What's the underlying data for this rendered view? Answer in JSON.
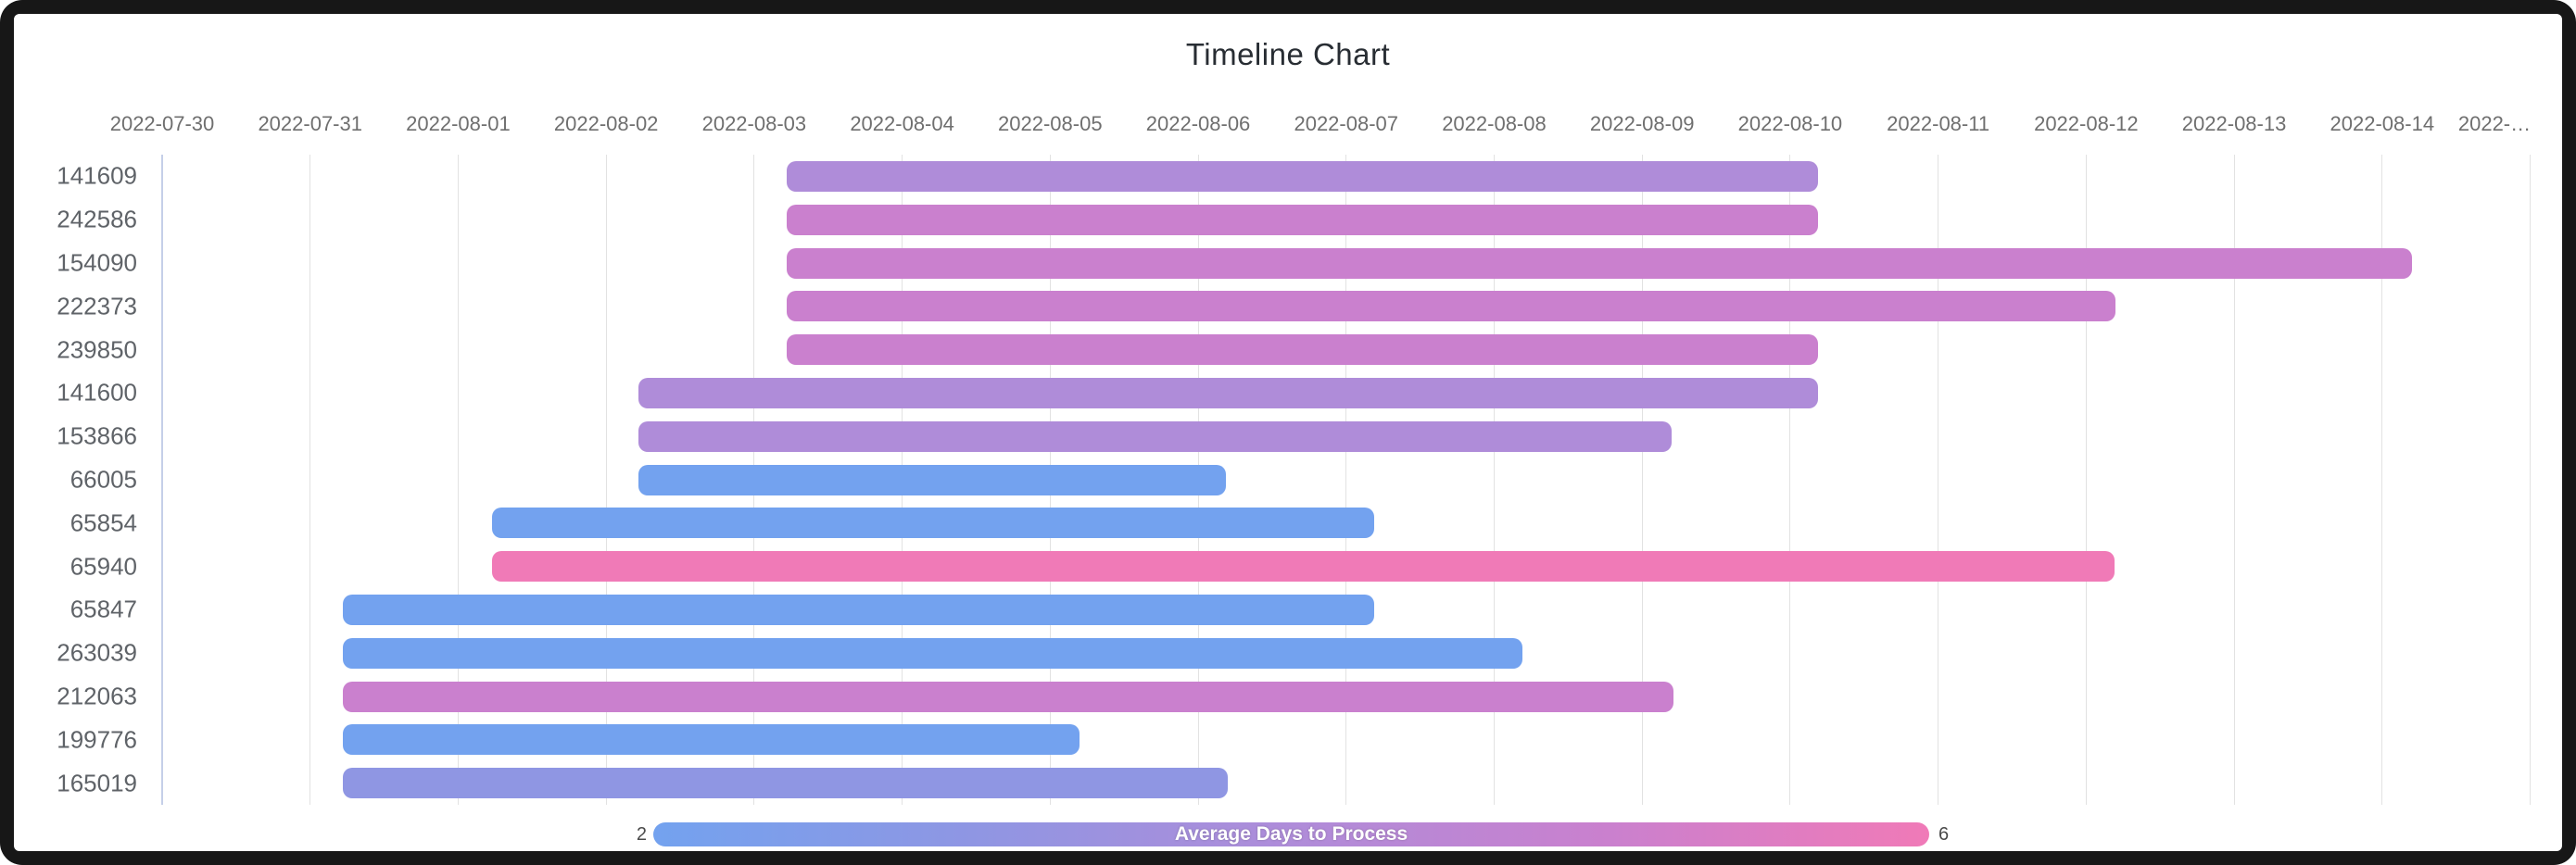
{
  "chart_data": {
    "type": "bar",
    "variant": "timeline-gantt",
    "title": "Timeline Chart",
    "x_axis": {
      "unit": "date",
      "axis_start": "2022-07-30",
      "days_per_gridline": 1,
      "tick_labels": [
        "2022-07-30",
        "2022-07-31",
        "2022-08-01",
        "2022-08-02",
        "2022-08-03",
        "2022-08-04",
        "2022-08-05",
        "2022-08-06",
        "2022-08-07",
        "2022-08-08",
        "2022-08-09",
        "2022-08-10",
        "2022-08-11",
        "2022-08-12",
        "2022-08-13",
        "2022-08-14",
        "2022-…"
      ],
      "grid": true
    },
    "rows": [
      {
        "label": "141609",
        "start_day": 4.22,
        "end_day": 11.19,
        "start_date": "2022-08-03",
        "end_date": "2022-08-10",
        "color": "#AF8CD9"
      },
      {
        "label": "242586",
        "start_day": 4.22,
        "end_day": 11.19,
        "start_date": "2022-08-03",
        "end_date": "2022-08-10",
        "color": "#CA80CE"
      },
      {
        "label": "154090",
        "start_day": 4.22,
        "end_day": 15.2,
        "start_date": "2022-08-03",
        "end_date": "2022-08-14",
        "color": "#CA80CE"
      },
      {
        "label": "222373",
        "start_day": 4.22,
        "end_day": 13.2,
        "start_date": "2022-08-03",
        "end_date": "2022-08-12",
        "color": "#CA80CE"
      },
      {
        "label": "239850",
        "start_day": 4.22,
        "end_day": 11.19,
        "start_date": "2022-08-03",
        "end_date": "2022-08-10",
        "color": "#CA80CE"
      },
      {
        "label": "141600",
        "start_day": 3.22,
        "end_day": 11.19,
        "start_date": "2022-08-02",
        "end_date": "2022-08-10",
        "color": "#AF8CD9"
      },
      {
        "label": "153866",
        "start_day": 3.22,
        "end_day": 10.2,
        "start_date": "2022-08-02",
        "end_date": "2022-08-09",
        "color": "#AF8CD9"
      },
      {
        "label": "66005",
        "start_day": 3.22,
        "end_day": 7.19,
        "start_date": "2022-08-02",
        "end_date": "2022-08-06",
        "color": "#73A2EF"
      },
      {
        "label": "65854",
        "start_day": 2.23,
        "end_day": 8.19,
        "start_date": "2022-08-01",
        "end_date": "2022-08-07",
        "color": "#73A2EF"
      },
      {
        "label": "65940",
        "start_day": 2.23,
        "end_day": 13.19,
        "start_date": "2022-08-01",
        "end_date": "2022-08-12",
        "color": "#F07AB7"
      },
      {
        "label": "65847",
        "start_day": 1.22,
        "end_day": 8.19,
        "start_date": "2022-07-31",
        "end_date": "2022-08-07",
        "color": "#73A2EF"
      },
      {
        "label": "263039",
        "start_day": 1.22,
        "end_day": 9.19,
        "start_date": "2022-07-31",
        "end_date": "2022-08-08",
        "color": "#73A2EF"
      },
      {
        "label": "212063",
        "start_day": 1.22,
        "end_day": 10.21,
        "start_date": "2022-07-31",
        "end_date": "2022-08-09",
        "color": "#CA80CE"
      },
      {
        "label": "199776",
        "start_day": 1.22,
        "end_day": 6.2,
        "start_date": "2022-07-31",
        "end_date": "2022-08-05",
        "color": "#73A2EF"
      },
      {
        "label": "165019",
        "start_day": 1.22,
        "end_day": 7.2,
        "start_date": "2022-07-31",
        "end_date": "2022-08-06",
        "color": "#8F96E3"
      }
    ],
    "legend": {
      "label": "Average Days to Process",
      "min": "2",
      "max": "6",
      "position": "bottom",
      "gradient_colors": [
        "#73A2EF",
        "#8F96E3",
        "#AF8CD9",
        "#CA80CE",
        "#F07AB7"
      ]
    },
    "style_colors": {
      "axis_line": "#c5cfe8",
      "gridline": "#e2e2e2",
      "frame": "#171717",
      "card": "#ffffff"
    }
  }
}
